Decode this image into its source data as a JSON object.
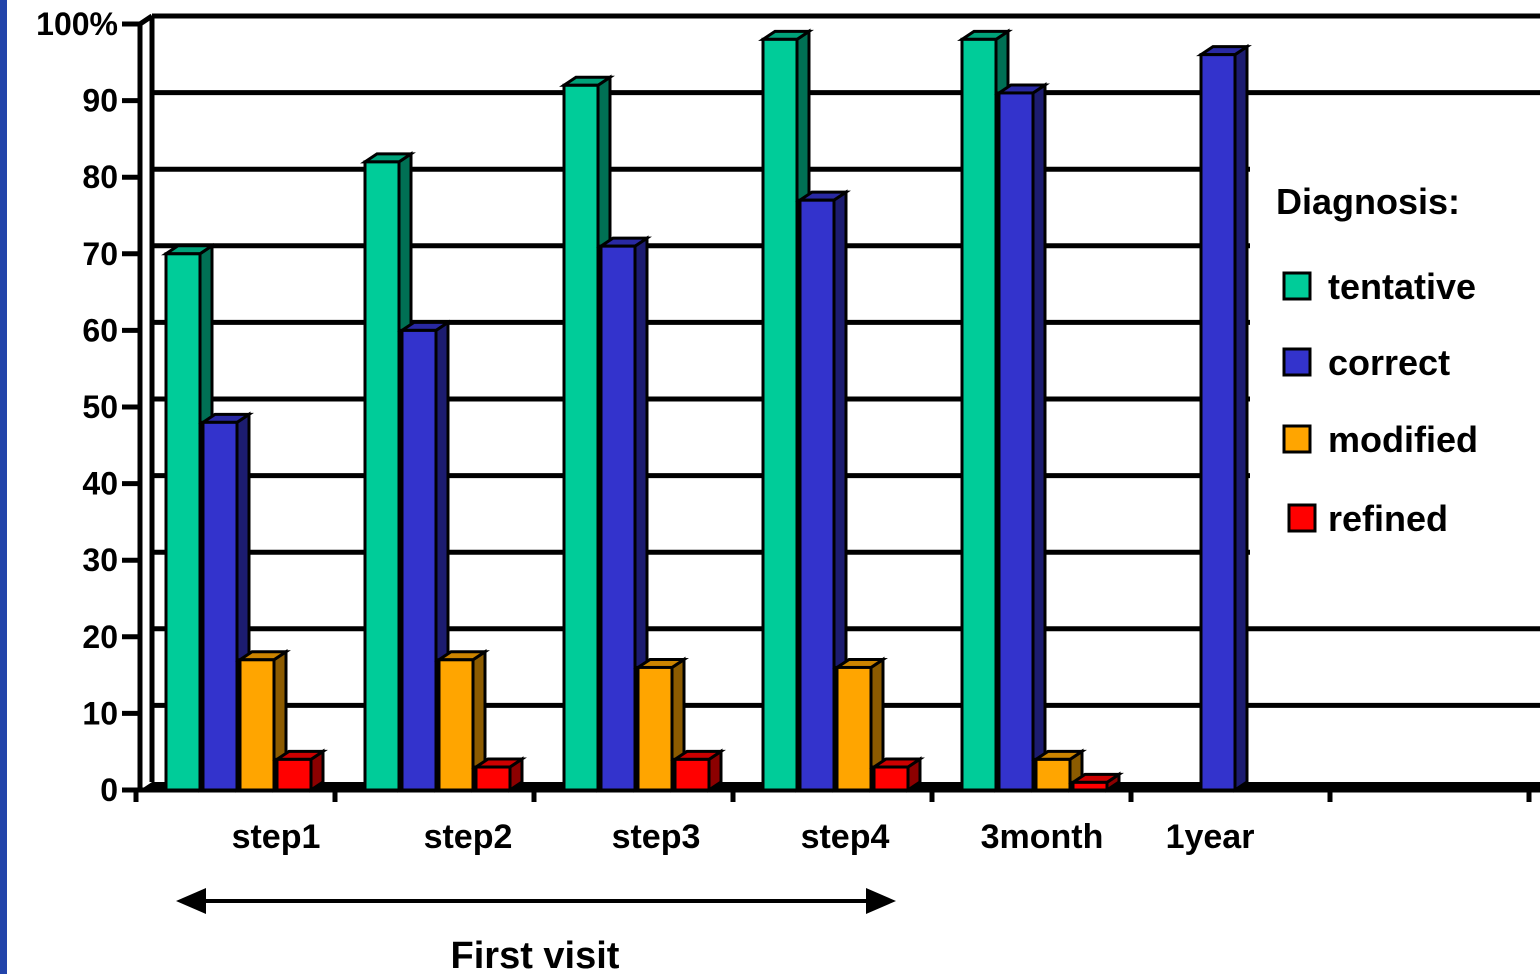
{
  "chart_data": {
    "type": "bar",
    "categories": [
      "step1",
      "step2",
      "step3",
      "step4",
      "3month",
      "1year"
    ],
    "series": [
      {
        "name": "tentative",
        "values": [
          70,
          82,
          92,
          98,
          98,
          null
        ]
      },
      {
        "name": "correct",
        "values": [
          48,
          60,
          71,
          77,
          91,
          96
        ]
      },
      {
        "name": "modified",
        "values": [
          17,
          17,
          16,
          16,
          4,
          null
        ]
      },
      {
        "name": "refined",
        "values": [
          4,
          3,
          4,
          3,
          1,
          null
        ]
      }
    ],
    "ylim": [
      0,
      100
    ],
    "yticks": [
      "0",
      "10",
      "20",
      "30",
      "40",
      "50",
      "60",
      "70",
      "80",
      "90",
      "100%"
    ],
    "grid": true,
    "legend": {
      "title": "Diagnosis:",
      "placement": "right"
    },
    "annotation": {
      "text": "First visit",
      "spans": [
        "step1",
        "step4"
      ]
    },
    "colors": {
      "tentative": "#00cc99",
      "correct": "#3333cc",
      "modified": "#ffa500",
      "refined": "#ff0000"
    }
  }
}
